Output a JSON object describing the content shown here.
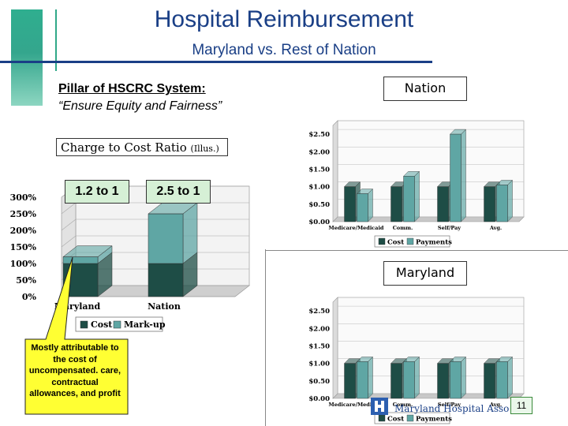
{
  "slide": {
    "title": "Hospital Reimbursement",
    "subtitle": "Maryland vs. Rest of Nation",
    "pillar": "Pillar of HSCRC System:",
    "equity": "“Ensure Equity and Fairness”",
    "ratio_label": "Charge to Cost Ratio",
    "ratio_illus": "(Illus.)",
    "maryland_ratio": "1.2 to 1",
    "nation_ratio": "2.5 to 1",
    "nation_box": "Nation",
    "maryland_box": "Maryland",
    "callout": "Mostly attributable to the cost of uncompensated. care, contractual allowances, and profit",
    "page_number": "11",
    "logo_text": "Maryland Hospital Association"
  },
  "colors": {
    "title": "#1a3f86",
    "cost": "#1e4d46",
    "markup": "#5fa6a4",
    "payments": "#5fa6a4",
    "callout_fill": "#ffff33",
    "label_box": "#d6f0d6"
  },
  "chart_data": [
    {
      "type": "bar",
      "stacked": true,
      "categories": [
        "Maryland",
        "Nation"
      ],
      "series": [
        {
          "name": "Cost",
          "values": [
            100,
            100
          ]
        },
        {
          "name": "Mark-up",
          "values": [
            20,
            150
          ]
        }
      ],
      "y_ticks": [
        "0%",
        "50%",
        "100%",
        "150%",
        "200%",
        "250%",
        "300%"
      ],
      "ylim": [
        0,
        300
      ],
      "legend": "bottom"
    },
    {
      "type": "bar",
      "categories": [
        "Medicare/Medicaid",
        "Comm.",
        "Self/Pay",
        "Avg."
      ],
      "series": [
        {
          "name": "Cost",
          "values": [
            1.0,
            1.0,
            1.0,
            1.0
          ]
        },
        {
          "name": "Payments",
          "values": [
            0.8,
            1.3,
            2.5,
            1.05
          ]
        }
      ],
      "y_ticks": [
        "$0.00",
        "$0.50",
        "$1.00",
        "$1.50",
        "$2.00",
        "$2.50"
      ],
      "ylim": [
        0,
        2.75
      ],
      "legend": "bottom"
    },
    {
      "type": "bar",
      "categories": [
        "Medicare/Medicaid",
        "Comm.",
        "Self/Pay",
        "Avg."
      ],
      "series": [
        {
          "name": "Cost",
          "values": [
            1.0,
            1.0,
            1.0,
            1.0
          ]
        },
        {
          "name": "Payments",
          "values": [
            1.05,
            1.05,
            1.05,
            1.05
          ]
        }
      ],
      "y_ticks": [
        "$0.00",
        "$0.50",
        "$1.00",
        "$1.50",
        "$2.00",
        "$2.50"
      ],
      "ylim": [
        0,
        2.75
      ],
      "legend": "bottom"
    }
  ]
}
